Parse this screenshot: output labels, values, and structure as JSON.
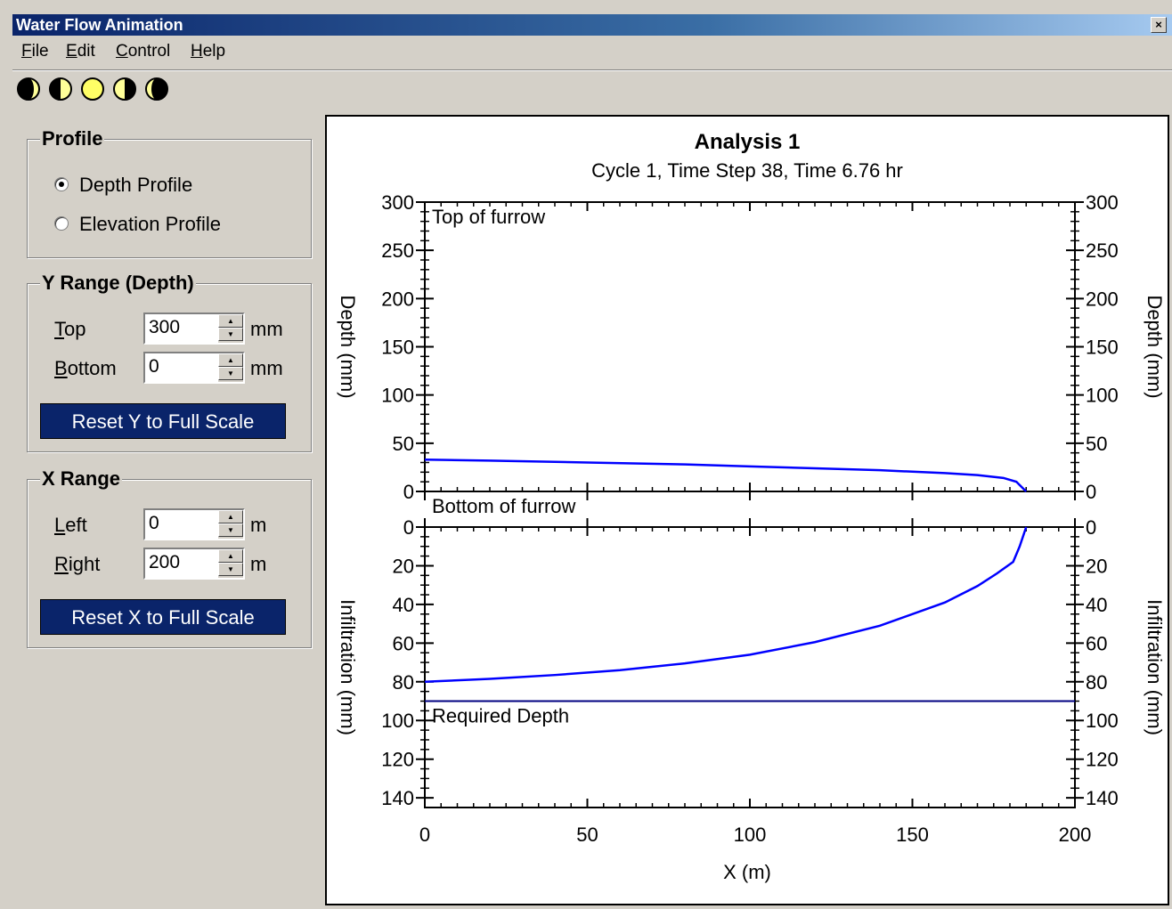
{
  "window": {
    "title": "Water Flow Animation",
    "close_glyph": "×"
  },
  "menu": [
    "File",
    "Edit",
    "Control",
    "Help"
  ],
  "toolbar": {
    "icons": [
      "moon-new-icon",
      "moon-first-quarter-icon",
      "moon-full-icon",
      "moon-last-quarter-icon",
      "moon-waning-icon"
    ]
  },
  "profile": {
    "legend": "Profile",
    "options": [
      "Depth Profile",
      "Elevation Profile"
    ],
    "selected": 0
  },
  "yrange": {
    "legend": "Y Range (Depth)",
    "top_label": "Top",
    "top_value": "300",
    "top_unit": "mm",
    "bottom_label": "Bottom",
    "bottom_value": "0",
    "bottom_unit": "mm",
    "reset_label": "Reset Y to Full Scale"
  },
  "xrange": {
    "legend": "X Range",
    "left_label": "Left",
    "left_value": "0",
    "left_unit": "m",
    "right_label": "Right",
    "right_value": "200",
    "right_unit": "m",
    "reset_label": "Reset X to Full Scale"
  },
  "chart_data": {
    "type": "line",
    "title": "Analysis 1",
    "subtitle": "Cycle 1, Time Step 38, Time 6.76 hr",
    "xlabel": "X (m)",
    "xlim": [
      0,
      200
    ],
    "xticks": [
      0,
      50,
      100,
      150,
      200
    ],
    "upper": {
      "ylabel": "Depth (mm)",
      "ylim": [
        0,
        300
      ],
      "yticks": [
        0,
        50,
        100,
        150,
        200,
        250,
        300
      ],
      "annotations": [
        "Top of furrow",
        "Bottom of furrow"
      ],
      "series": [
        {
          "x": [
            0,
            20,
            50,
            80,
            100,
            120,
            140,
            160,
            170,
            178,
            182,
            185
          ],
          "y": [
            33,
            32,
            30,
            28,
            26,
            24,
            22,
            19,
            17,
            14,
            10,
            0
          ]
        }
      ]
    },
    "lower": {
      "ylabel": "Infiltration (mm)",
      "ylim": [
        0,
        145
      ],
      "yticks": [
        0,
        20,
        40,
        60,
        80,
        100,
        120,
        140
      ],
      "annotations": [
        "Required Depth"
      ],
      "series": [
        {
          "x": [
            0,
            20,
            40,
            60,
            80,
            100,
            120,
            140,
            160,
            170,
            176,
            181,
            183,
            185
          ],
          "y": [
            80,
            78.5,
            76.5,
            74,
            70.5,
            66,
            59.5,
            51,
            39,
            30.5,
            24,
            18,
            10,
            0
          ]
        }
      ],
      "required_depth": 90
    },
    "colors": {
      "curve": "#0000ff",
      "required": "#000080"
    }
  }
}
